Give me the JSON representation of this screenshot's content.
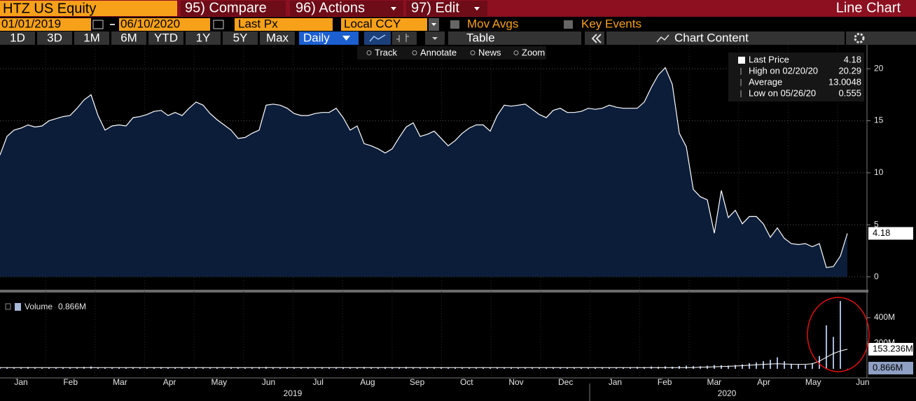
{
  "header": {
    "security": "HTZ US Equity",
    "compare": "95) Compare",
    "actions": "96) Actions",
    "edit": "97) Edit",
    "chart_type": "Line Chart"
  },
  "controls": {
    "start_date": "01/01/2019",
    "end_date": "06/10/2020",
    "price_field": "Last Px",
    "currency": "Local CCY",
    "mov_avgs": "Mov Avgs",
    "key_events": "Key Events",
    "periods": [
      "1D",
      "3D",
      "1M",
      "6M",
      "YTD",
      "1Y",
      "5Y",
      "Max"
    ],
    "frequency": "Daily",
    "table": "Table",
    "chart_content": "Chart Content"
  },
  "tools": [
    "Track",
    "Annotate",
    "News",
    "Zoom"
  ],
  "axis": {
    "months": [
      "Jan",
      "Feb",
      "Mar",
      "Apr",
      "May",
      "Jun",
      "Jul",
      "Aug",
      "Sep",
      "Oct",
      "Nov",
      "Dec",
      "Jan",
      "Feb",
      "Mar",
      "Apr",
      "May",
      "Jun"
    ],
    "years": [
      "2019",
      "2020"
    ]
  },
  "legend": [
    {
      "label": "Last Price",
      "value": 4.18
    },
    {
      "label": "High on 02/20/20",
      "value": 20.29
    },
    {
      "label": "Average",
      "value": 13.0048
    },
    {
      "label": "Low on 05/26/20",
      "value": 0.555
    }
  ],
  "chart_data": [
    {
      "type": "area",
      "series": [
        {
          "name": "Last Price",
          "color": "#ffffff",
          "fill": "#0c1d3a",
          "values": [
            11.7,
            13.5,
            14.1,
            14.3,
            14.6,
            14.4,
            14.5,
            15.0,
            15.2,
            15.4,
            15.5,
            16.2,
            17.0,
            17.5,
            15.5,
            14.1,
            14.5,
            14.6,
            14.5,
            15.3,
            15.4,
            15.6,
            15.9,
            16.0,
            15.5,
            15.8,
            15.5,
            16.2,
            16.8,
            16.5,
            15.7,
            15.1,
            14.6,
            14.1,
            13.3,
            13.4,
            13.8,
            14.1,
            16.5,
            16.6,
            16.5,
            16.2,
            15.7,
            15.5,
            15.5,
            15.7,
            15.8,
            15.8,
            16.2,
            15.3,
            14.1,
            14.5,
            12.8,
            12.6,
            12.3,
            11.9,
            12.3,
            13.4,
            14.4,
            14.8,
            13.5,
            13.7,
            14.0,
            13.3,
            12.6,
            13.1,
            13.8,
            14.3,
            14.6,
            14.6,
            14.0,
            15.5,
            16.5,
            16.4,
            16.5,
            16.6,
            16.1,
            15.6,
            15.3,
            16.0,
            16.2,
            15.8,
            15.8,
            15.9,
            16.2,
            16.1,
            16.2,
            16.5,
            16.3,
            16.2,
            16.2,
            16.2,
            16.8,
            18.2,
            19.4,
            20.1,
            18.5,
            13.8,
            12.5,
            8.4,
            7.7,
            7.4,
            4.2,
            8.3,
            5.7,
            6.4,
            5.1,
            5.8,
            5.8,
            5.1,
            3.8,
            4.7,
            3.7,
            3.2,
            3.1,
            3.2,
            2.9,
            3.2,
            0.9,
            1.0,
            2.0,
            4.18
          ]
        }
      ],
      "ylim": [
        -1.1,
        22.3
      ],
      "yticks": [
        0,
        5,
        10,
        15,
        20
      ],
      "grid": true
    },
    {
      "type": "bar",
      "series": [
        {
          "name": "Volume",
          "color": "#a8b8d8",
          "end_label": "0.866M",
          "values": [
            12,
            9,
            8,
            10,
            14,
            9,
            7,
            8,
            11,
            10,
            9,
            12,
            15,
            18,
            10,
            8,
            9,
            11,
            8,
            10,
            9,
            8,
            10,
            12,
            9,
            8,
            11,
            10,
            13,
            9,
            8,
            10,
            9,
            11,
            12,
            8,
            9,
            13,
            15,
            10,
            9,
            8,
            10,
            9,
            11,
            8,
            9,
            10,
            12,
            11,
            9,
            10,
            14,
            12,
            11,
            13,
            10,
            12,
            15,
            10,
            9,
            11,
            13,
            12,
            10,
            9,
            8,
            11,
            10,
            9,
            10,
            12,
            11,
            9,
            8,
            10,
            9,
            11,
            10,
            12,
            9,
            8,
            10,
            11,
            9,
            10,
            9,
            12,
            10,
            11,
            13,
            15,
            14,
            18,
            16,
            20,
            17,
            22,
            25,
            22,
            20,
            25,
            30,
            28,
            25,
            30,
            35,
            45,
            50,
            60,
            70,
            90,
            60,
            40,
            35,
            30,
            45,
            100,
            340,
            250,
            530,
            0.866
          ]
        },
        {
          "color": "#ffffff",
          "end_label": "153.236M",
          "values": [
            10,
            10,
            10,
            10,
            10,
            10,
            10,
            10,
            10,
            10,
            10,
            10,
            10,
            10,
            10,
            10,
            10,
            10,
            10,
            10,
            10,
            10,
            10,
            10,
            10,
            10,
            10,
            10,
            10,
            10,
            10,
            10,
            10,
            10,
            10,
            10,
            10,
            10,
            10,
            10,
            10,
            10,
            10,
            10,
            10,
            10,
            10,
            10,
            10,
            10,
            10,
            10,
            10,
            10,
            10,
            10,
            10,
            10,
            10,
            10,
            10,
            10,
            10,
            10,
            10,
            10,
            10,
            10,
            10,
            10,
            10,
            10,
            10,
            10,
            10,
            10,
            10,
            10,
            10,
            10,
            10,
            10,
            10,
            10,
            10,
            10,
            10,
            10,
            10,
            10,
            10,
            10,
            10,
            10,
            10,
            10,
            10,
            10,
            10,
            10,
            12,
            14,
            16,
            18,
            20,
            22,
            25,
            28,
            32,
            35,
            38,
            40,
            38,
            36,
            35,
            35,
            40,
            60,
            90,
            120,
            140,
            153.236
          ]
        }
      ],
      "ylim": [
        -71,
        586
      ],
      "yticks": [
        {
          "value": 200,
          "label": "200M"
        },
        {
          "value": 400,
          "label": "400M"
        }
      ]
    }
  ]
}
